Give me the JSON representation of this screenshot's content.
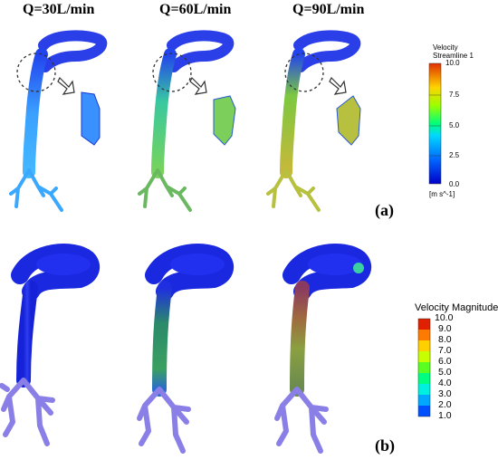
{
  "titles": [
    "Q=30L/min",
    "Q=60L/min",
    "Q=90L/min"
  ],
  "panels": {
    "a": "(a)",
    "b": "(b)"
  },
  "colorbar_a": {
    "title_line1": "Velocity",
    "title_line2": "Streamline 1",
    "ticks": [
      "10.0",
      "7.5",
      "5.0",
      "2.5",
      "0.0"
    ],
    "units": "[m s^-1]"
  },
  "colorbar_b": {
    "title": "Velocity Magnitude",
    "ticks": [
      "10.0",
      "9.0",
      "8.0",
      "7.0",
      "6.0",
      "5.0",
      "4.0",
      "3.0",
      "2.0",
      "1.0"
    ]
  },
  "colors": {
    "streamline_low": "#2f8cff",
    "streamline_mid": "#6fd35a",
    "streamline_high": "#c8c23a",
    "surface_low": "#1f2ee0",
    "airway_purple": "#8a7fe6",
    "highlight_circle": "#333333",
    "arrow": "#ffffff"
  }
}
